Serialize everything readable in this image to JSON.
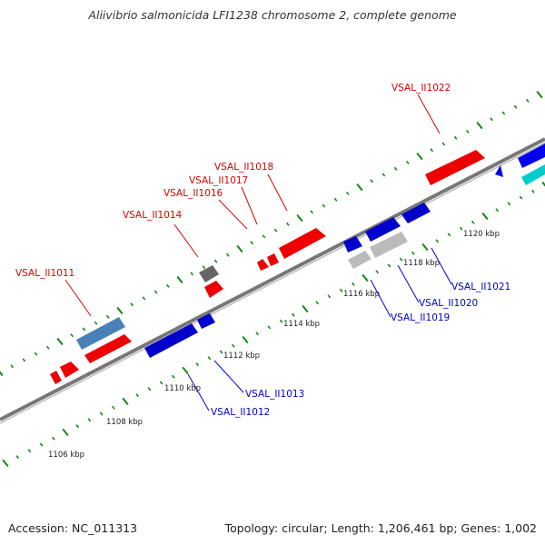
{
  "header": {
    "title": "Aliivibrio salmonicida LFI1238 chromosome 2, complete genome"
  },
  "footer": {
    "accession": "Accession: NC_011313",
    "summary": "Topology: circular; Length: 1,206,461 bp; Genes: 1,002"
  },
  "colors": {
    "forward_cds": "#ff0000",
    "reverse_cds": "#0000ff",
    "forward_other": "#5a8fc0",
    "reverse_other": "#00c8c8",
    "pseudo_fwd": "#777777",
    "pseudo_rev": "#bbbbbb",
    "backbone": "#888888",
    "ticks": "#118811"
  },
  "kbp_labels": [
    "1106 kbp",
    "1108 kbp",
    "1110 kbp",
    "1112 kbp",
    "1114 kbp",
    "1116 kbp",
    "1118 kbp",
    "1120 kbp"
  ],
  "gene_labels_top": [
    "VSAL_II1011",
    "VSAL_II1014",
    "VSAL_II1016",
    "VSAL_II1017",
    "VSAL_II1018",
    "VSAL_II1022"
  ],
  "gene_labels_bottom": [
    "VSAL_II1012",
    "VSAL_II1013",
    "VSAL_II1019",
    "VSAL_II1020",
    "VSAL_II1021"
  ]
}
